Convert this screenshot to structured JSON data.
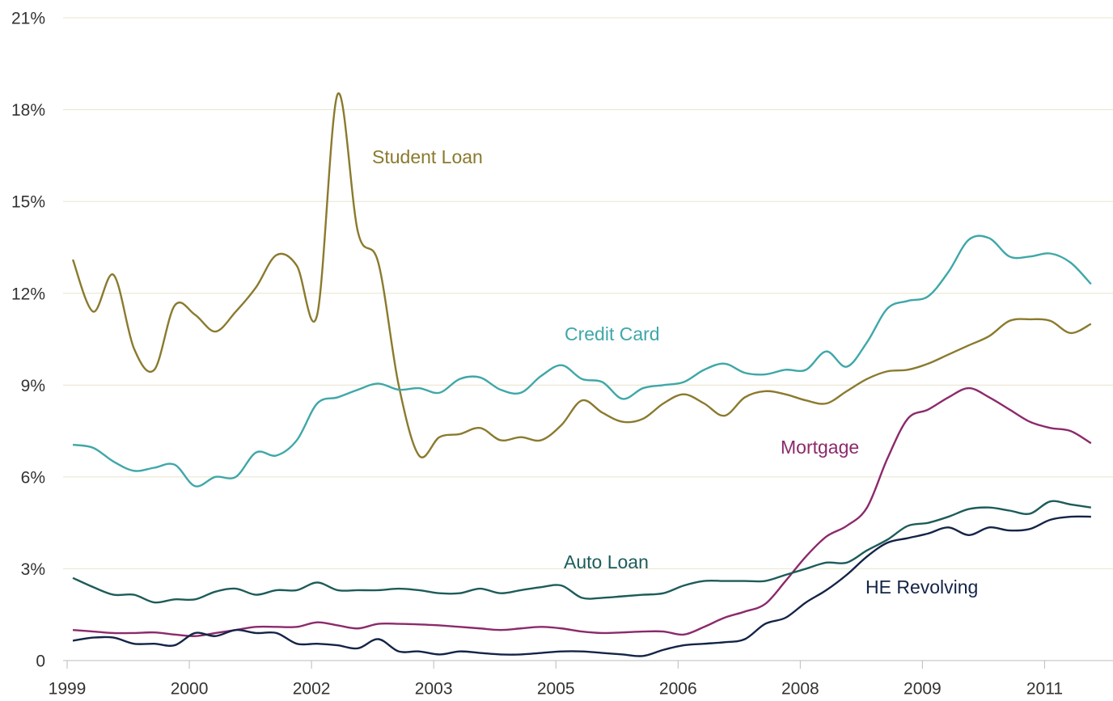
{
  "chart_data": {
    "type": "line",
    "x": [
      1999.07,
      1999.32,
      1999.57,
      1999.82,
      2000.07,
      2000.32,
      2000.57,
      2000.82,
      2001.07,
      2001.32,
      2001.57,
      2001.82,
      2002.07,
      2002.32,
      2002.57,
      2002.82,
      2003.07,
      2003.32,
      2003.57,
      2003.82,
      2004.07,
      2004.32,
      2004.57,
      2004.82,
      2005.07,
      2005.32,
      2005.57,
      2005.82,
      2006.07,
      2006.32,
      2006.57,
      2006.82,
      2007.07,
      2007.32,
      2007.57,
      2007.82,
      2008.07,
      2008.32,
      2008.57,
      2008.82,
      2009.07,
      2009.32,
      2009.57,
      2009.82,
      2010.07,
      2010.32,
      2010.57,
      2010.82,
      2011.07,
      2011.32,
      2011.57
    ],
    "series": [
      {
        "name": "Student Loan",
        "color": "#8a7a2e",
        "values": [
          13.1,
          11.4,
          12.6,
          10.2,
          9.5,
          11.6,
          11.3,
          10.75,
          11.4,
          12.2,
          13.25,
          12.9,
          11.3,
          18.5,
          14.0,
          13.0,
          9.0,
          6.7,
          7.3,
          7.4,
          7.6,
          7.2,
          7.3,
          7.2,
          7.7,
          8.5,
          8.1,
          7.8,
          7.9,
          8.4,
          8.7,
          8.4,
          8.0,
          8.6,
          8.8,
          8.7,
          8.5,
          8.4,
          8.8,
          9.2,
          9.45,
          9.5,
          9.7,
          10.0,
          10.3,
          10.6,
          11.1,
          11.15,
          11.1,
          10.7,
          11.0
        ]
      },
      {
        "name": "Credit Card",
        "color": "#3fa7a8",
        "values": [
          7.05,
          6.95,
          6.5,
          6.2,
          6.3,
          6.4,
          5.7,
          6.0,
          6.0,
          6.8,
          6.7,
          7.2,
          8.4,
          8.6,
          8.85,
          9.05,
          8.85,
          8.9,
          8.75,
          9.2,
          9.25,
          8.85,
          8.75,
          9.3,
          9.65,
          9.2,
          9.1,
          8.55,
          8.9,
          9.0,
          9.1,
          9.5,
          9.7,
          9.4,
          9.35,
          9.5,
          9.5,
          10.1,
          9.6,
          10.4,
          11.5,
          11.75,
          11.9,
          12.7,
          13.75,
          13.8,
          13.2,
          13.2,
          13.3,
          13.0,
          12.3
        ]
      },
      {
        "name": "Mortgage",
        "color": "#8b2a6b",
        "values": [
          1.0,
          0.95,
          0.9,
          0.9,
          0.92,
          0.85,
          0.8,
          0.9,
          1.0,
          1.1,
          1.1,
          1.1,
          1.25,
          1.15,
          1.05,
          1.2,
          1.2,
          1.18,
          1.15,
          1.1,
          1.05,
          1.0,
          1.05,
          1.1,
          1.05,
          0.95,
          0.9,
          0.92,
          0.95,
          0.95,
          0.85,
          1.1,
          1.4,
          1.6,
          1.85,
          2.6,
          3.4,
          4.05,
          4.4,
          5.0,
          6.6,
          7.9,
          8.2,
          8.6,
          8.9,
          8.6,
          8.2,
          7.8,
          7.6,
          7.5,
          7.1
        ]
      },
      {
        "name": "Auto Loan",
        "color": "#1d5c5a",
        "values": [
          2.7,
          2.4,
          2.15,
          2.15,
          1.9,
          2.0,
          2.0,
          2.25,
          2.35,
          2.15,
          2.3,
          2.3,
          2.55,
          2.3,
          2.3,
          2.3,
          2.35,
          2.3,
          2.2,
          2.2,
          2.35,
          2.2,
          2.3,
          2.4,
          2.45,
          2.05,
          2.05,
          2.1,
          2.15,
          2.2,
          2.45,
          2.6,
          2.6,
          2.6,
          2.6,
          2.8,
          3.0,
          3.2,
          3.2,
          3.6,
          3.95,
          4.4,
          4.5,
          4.7,
          4.95,
          5.0,
          4.9,
          4.8,
          5.2,
          5.1,
          5.0
        ]
      },
      {
        "name": "HE Revolving",
        "color": "#142447",
        "values": [
          0.65,
          0.75,
          0.75,
          0.55,
          0.55,
          0.5,
          0.9,
          0.8,
          1.0,
          0.9,
          0.9,
          0.55,
          0.55,
          0.5,
          0.4,
          0.7,
          0.3,
          0.3,
          0.2,
          0.3,
          0.25,
          0.2,
          0.2,
          0.25,
          0.3,
          0.3,
          0.25,
          0.2,
          0.15,
          0.35,
          0.5,
          0.55,
          0.6,
          0.7,
          1.2,
          1.4,
          1.9,
          2.3,
          2.8,
          3.4,
          3.85,
          4.0,
          4.15,
          4.35,
          4.1,
          4.35,
          4.25,
          4.3,
          4.6,
          4.7,
          4.7
        ]
      }
    ],
    "xlim": [
      1999,
      2011.8
    ],
    "xticks": [
      {
        "value": 1999,
        "label": "1999"
      },
      {
        "value": 2000.5,
        "label": "2000"
      },
      {
        "value": 2002,
        "label": "2002"
      },
      {
        "value": 2003.5,
        "label": "2003"
      },
      {
        "value": 2005,
        "label": "2005"
      },
      {
        "value": 2006.5,
        "label": "2006"
      },
      {
        "value": 2008,
        "label": "2008"
      },
      {
        "value": 2009.5,
        "label": "2009"
      },
      {
        "value": 2011,
        "label": "2011"
      }
    ],
    "ylim": [
      0,
      21
    ],
    "yticks": [
      0,
      {
        "value": 3,
        "label": "3%"
      },
      {
        "value": 6,
        "label": "6%"
      },
      {
        "value": 9,
        "label": "9%"
      },
      {
        "value": 12,
        "label": "12%"
      },
      {
        "value": 15,
        "label": "15%"
      },
      {
        "value": 18,
        "label": "18%"
      },
      {
        "value": 21,
        "label": "21%"
      }
    ],
    "grid": true
  }
}
